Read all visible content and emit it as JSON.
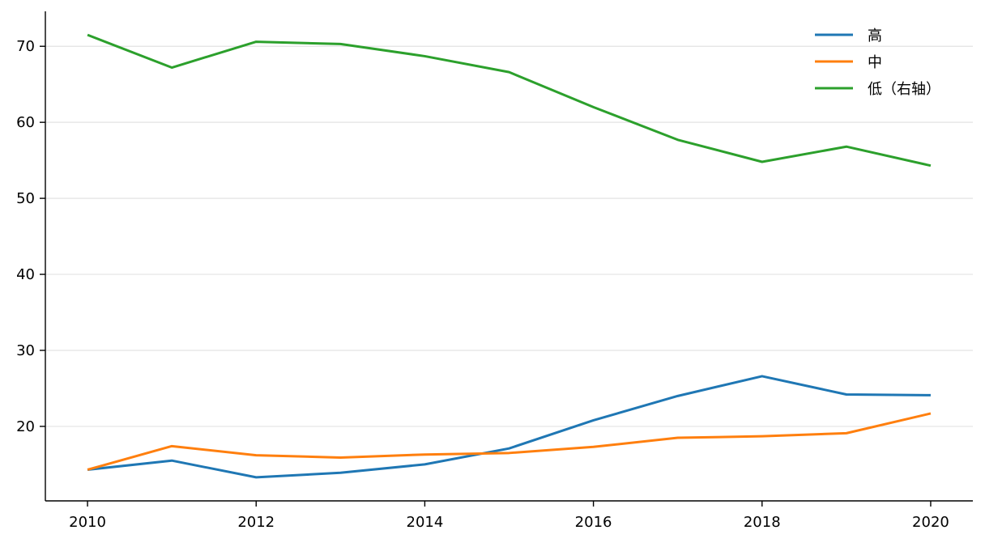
{
  "chart_data": {
    "type": "line",
    "title": "",
    "xlabel": "",
    "ylabel": "",
    "x": [
      2010,
      2011,
      2012,
      2013,
      2014,
      2015,
      2016,
      2017,
      2018,
      2019,
      2020
    ],
    "xlim": [
      2009.5,
      2020.5
    ],
    "ylim": [
      10.2,
      74.6
    ],
    "x_ticks": [
      2010,
      2012,
      2014,
      2016,
      2018,
      2020
    ],
    "y_ticks": [
      20,
      30,
      40,
      50,
      60,
      70
    ],
    "x_tick_labels": [
      "2010",
      "2012",
      "2014",
      "2016",
      "2018",
      "2020"
    ],
    "y_tick_labels": [
      "20",
      "30",
      "40",
      "50",
      "60",
      "70"
    ],
    "grid": "horizontal",
    "legend_position": "top-right",
    "series": [
      {
        "name": "高",
        "color": "#1f77b4",
        "values": [
          14.3,
          15.5,
          13.3,
          13.9,
          15.0,
          17.1,
          20.8,
          24.0,
          26.6,
          24.2,
          24.1
        ]
      },
      {
        "name": "中",
        "color": "#ff7f0e",
        "values": [
          14.3,
          17.4,
          16.2,
          15.9,
          16.3,
          16.5,
          17.3,
          18.5,
          18.7,
          19.1,
          21.7
        ]
      },
      {
        "name": "低（右轴）",
        "color": "#2ca02c",
        "values": [
          71.5,
          67.2,
          70.6,
          70.3,
          68.7,
          66.6,
          62.0,
          57.7,
          54.8,
          56.8,
          54.3
        ]
      }
    ]
  }
}
